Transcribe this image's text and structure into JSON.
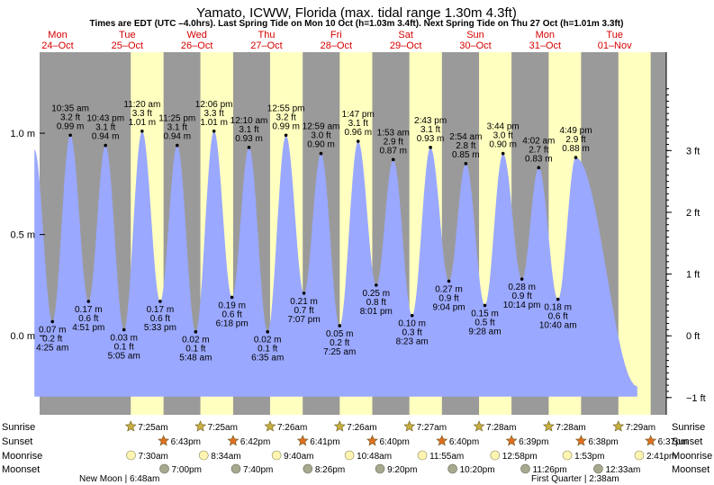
{
  "title": "Yamato, ICWW, Florida (max. tidal range 1.30m 4.3ft)",
  "subtitle": "Times are EDT (UTC –4.0hrs). Last Spring Tide on Mon 10 Oct (h=1.03m 3.4ft). Next Spring Tide on Thu 27 Oct (h=1.01m 3.3ft)",
  "colors": {
    "night": "#9a9a9a",
    "day": "#ffffc0",
    "tide": "#9aa8ff",
    "date_text": "#d60000",
    "sun_star": "#c8b040",
    "sunset_star": "#e07020",
    "moonrise": "#fff4b0",
    "moonset": "#a8a890"
  },
  "days": [
    {
      "dow": "Mon",
      "date": "24–Oct"
    },
    {
      "dow": "Tue",
      "date": "25–Oct"
    },
    {
      "dow": "Wed",
      "date": "26–Oct"
    },
    {
      "dow": "Thu",
      "date": "27–Oct"
    },
    {
      "dow": "Fri",
      "date": "28–Oct"
    },
    {
      "dow": "Sat",
      "date": "29–Oct"
    },
    {
      "dow": "Sun",
      "date": "30–Oct"
    },
    {
      "dow": "Mon",
      "date": "31–Oct"
    },
    {
      "dow": "Tue",
      "date": "01–Nov"
    }
  ],
  "axes": {
    "left_ticks": [
      "1.0 m",
      "0.5 m",
      "0.0 m"
    ],
    "left_values": [
      1.0,
      0.5,
      0.0
    ],
    "right_ticks": [
      "3 ft",
      "2 ft",
      "1 ft",
      "0 ft",
      "−1 ft"
    ],
    "right_values_ft": [
      3,
      2,
      1,
      0,
      -1
    ],
    "ylim_m": [
      -0.39,
      1.4
    ],
    "x_start": "Mon 24 Oct 00:00",
    "x_end": "Tue 01 Nov 24:00"
  },
  "chart_data": {
    "type": "area",
    "x_label": "time (day, hour)",
    "y_label": "height (m)",
    "tide_events": [
      {
        "day": 0,
        "time": "",
        "h_m": 0.92,
        "label_m": "",
        "label_ft": "",
        "high": true
      },
      {
        "day": 0,
        "time": "4:25 am",
        "h_m": 0.07,
        "label_m": "0.07 m",
        "label_ft": "0.2 ft",
        "high": false
      },
      {
        "day": 0,
        "time": "10:35 am",
        "h_m": 0.99,
        "label_m": "0.99 m",
        "label_ft": "3.2 ft",
        "high": true
      },
      {
        "day": 0,
        "time": "4:51 pm",
        "h_m": 0.17,
        "label_m": "0.17 m",
        "label_ft": "0.6 ft",
        "high": false
      },
      {
        "day": 0,
        "time": "10:43 pm",
        "h_m": 0.94,
        "label_m": "0.94 m",
        "label_ft": "3.1 ft",
        "high": true
      },
      {
        "day": 1,
        "time": "5:05 am",
        "h_m": 0.03,
        "label_m": "0.03 m",
        "label_ft": "0.1 ft",
        "high": false
      },
      {
        "day": 1,
        "time": "11:20 am",
        "h_m": 1.01,
        "label_m": "1.01 m",
        "label_ft": "3.3 ft",
        "high": true
      },
      {
        "day": 1,
        "time": "5:33 pm",
        "h_m": 0.17,
        "label_m": "0.17 m",
        "label_ft": "0.6 ft",
        "high": false
      },
      {
        "day": 1,
        "time": "11:25 pm",
        "h_m": 0.94,
        "label_m": "0.94 m",
        "label_ft": "3.1 ft",
        "high": true
      },
      {
        "day": 2,
        "time": "5:48 am",
        "h_m": 0.02,
        "label_m": "0.02 m",
        "label_ft": "0.1 ft",
        "high": false
      },
      {
        "day": 2,
        "time": "12:06 pm",
        "h_m": 1.01,
        "label_m": "1.01 m",
        "label_ft": "3.3 ft",
        "high": true
      },
      {
        "day": 2,
        "time": "6:18 pm",
        "h_m": 0.19,
        "label_m": "0.19 m",
        "label_ft": "0.6 ft",
        "high": false
      },
      {
        "day": 3,
        "time": "12:10 am",
        "h_m": 0.93,
        "label_m": "0.93 m",
        "label_ft": "3.1 ft",
        "high": true
      },
      {
        "day": 3,
        "time": "6:35 am",
        "h_m": 0.02,
        "label_m": "0.02 m",
        "label_ft": "0.1 ft",
        "high": false
      },
      {
        "day": 3,
        "time": "12:55 pm",
        "h_m": 0.99,
        "label_m": "0.99 m",
        "label_ft": "3.2 ft",
        "high": true
      },
      {
        "day": 3,
        "time": "7:07 pm",
        "h_m": 0.21,
        "label_m": "0.21 m",
        "label_ft": "0.7 ft",
        "high": false
      },
      {
        "day": 4,
        "time": "12:59 am",
        "h_m": 0.9,
        "label_m": "0.90 m",
        "label_ft": "3.0 ft",
        "high": true
      },
      {
        "day": 4,
        "time": "7:25 am",
        "h_m": 0.05,
        "label_m": "0.05 m",
        "label_ft": "0.2 ft",
        "high": false
      },
      {
        "day": 4,
        "time": "1:47 pm",
        "h_m": 0.96,
        "label_m": "0.96 m",
        "label_ft": "3.1 ft",
        "high": true
      },
      {
        "day": 4,
        "time": "8:01 pm",
        "h_m": 0.25,
        "label_m": "0.25 m",
        "label_ft": "0.8 ft",
        "high": false
      },
      {
        "day": 5,
        "time": "1:53 am",
        "h_m": 0.87,
        "label_m": "0.87 m",
        "label_ft": "2.9 ft",
        "high": true
      },
      {
        "day": 5,
        "time": "8:23 am",
        "h_m": 0.1,
        "label_m": "0.10 m",
        "label_ft": "0.3 ft",
        "high": false
      },
      {
        "day": 5,
        "time": "2:43 pm",
        "h_m": 0.93,
        "label_m": "0.93 m",
        "label_ft": "3.1 ft",
        "high": true
      },
      {
        "day": 5,
        "time": "9:04 pm",
        "h_m": 0.27,
        "label_m": "0.27 m",
        "label_ft": "0.9 ft",
        "high": false
      },
      {
        "day": 6,
        "time": "2:54 am",
        "h_m": 0.85,
        "label_m": "0.85 m",
        "label_ft": "2.8 ft",
        "high": true
      },
      {
        "day": 6,
        "time": "9:28 am",
        "h_m": 0.15,
        "label_m": "0.15 m",
        "label_ft": "0.5 ft",
        "high": false
      },
      {
        "day": 6,
        "time": "3:44 pm",
        "h_m": 0.9,
        "label_m": "0.90 m",
        "label_ft": "3.0 ft",
        "high": true
      },
      {
        "day": 6,
        "time": "10:14 pm",
        "h_m": 0.28,
        "label_m": "0.28 m",
        "label_ft": "0.9 ft",
        "high": false
      },
      {
        "day": 7,
        "time": "4:02 am",
        "h_m": 0.83,
        "label_m": "0.83 m",
        "label_ft": "2.7 ft",
        "high": true
      },
      {
        "day": 7,
        "time": "10:40 am",
        "h_m": 0.18,
        "label_m": "0.18 m",
        "label_ft": "0.6 ft",
        "high": false
      },
      {
        "day": 7,
        "time": "4:49 pm",
        "h_m": 0.88,
        "label_m": "0.88 m",
        "label_ft": "2.9 ft",
        "high": true
      },
      {
        "day": 8,
        "time": "",
        "h_m": -0.25,
        "label_m": "",
        "label_ft": "",
        "high": false
      }
    ]
  },
  "sun_moon": {
    "row_labels": [
      "Sunrise",
      "Sunset",
      "Moonrise",
      "Moonset"
    ],
    "sunrise": [
      {
        "day": 1,
        "time": "7:25am"
      },
      {
        "day": 2,
        "time": "7:25am"
      },
      {
        "day": 3,
        "time": "7:26am"
      },
      {
        "day": 4,
        "time": "7:26am"
      },
      {
        "day": 5,
        "time": "7:27am"
      },
      {
        "day": 6,
        "time": "7:28am"
      },
      {
        "day": 7,
        "time": "7:28am"
      },
      {
        "day": 8,
        "time": "7:29am"
      }
    ],
    "sunset": [
      {
        "day": 1,
        "time": "6:43pm"
      },
      {
        "day": 2,
        "time": "6:42pm"
      },
      {
        "day": 3,
        "time": "6:41pm"
      },
      {
        "day": 4,
        "time": "6:40pm"
      },
      {
        "day": 5,
        "time": "6:40pm"
      },
      {
        "day": 6,
        "time": "6:39pm"
      },
      {
        "day": 7,
        "time": "6:38pm"
      },
      {
        "day": 8,
        "time": "6:37pm"
      }
    ],
    "moonrise": [
      {
        "day": 1,
        "time": "7:30am"
      },
      {
        "day": 2,
        "time": "8:34am"
      },
      {
        "day": 3,
        "time": "9:40am"
      },
      {
        "day": 4,
        "time": "10:48am"
      },
      {
        "day": 5,
        "time": "11:55am"
      },
      {
        "day": 6,
        "time": "12:58pm"
      },
      {
        "day": 7,
        "time": "1:53pm"
      },
      {
        "day": 8,
        "time": "2:41pm"
      }
    ],
    "moonset": [
      {
        "day": 1,
        "time": "7:00pm"
      },
      {
        "day": 2,
        "time": "7:40pm"
      },
      {
        "day": 3,
        "time": "8:26pm"
      },
      {
        "day": 4,
        "time": "9:20pm"
      },
      {
        "day": 5,
        "time": "10:20pm"
      },
      {
        "day": 6,
        "time": "11:26pm"
      },
      {
        "day": 8,
        "time": "12:33am"
      }
    ],
    "phases": [
      {
        "text": "New Moon | 6:48am"
      },
      {
        "text": "First Quarter | 2:38am"
      }
    ]
  }
}
